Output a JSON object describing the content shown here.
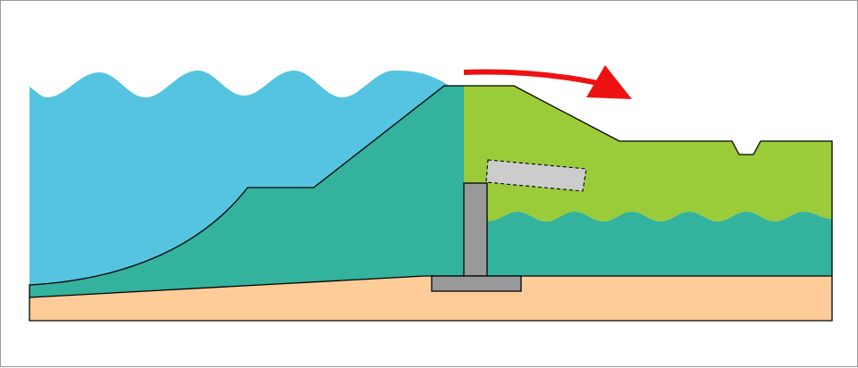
{
  "diagram": {
    "colors": {
      "sea": "#55C4E0",
      "embankment": "#33B29D",
      "land": "#9ACC3A",
      "ground": "#FDCC99",
      "wall": "#999999",
      "broken_wall": "#CCCCCC",
      "arrow": "#EE1111",
      "outline": "#000000",
      "frame": "#9A9A9A"
    },
    "elements": [
      "sea-water",
      "seawall-embankment",
      "landward-ground",
      "groundwater",
      "foundation-soil",
      "retaining-wall",
      "wall-footing",
      "displaced-wall-segment",
      "overflow-arrow"
    ]
  }
}
